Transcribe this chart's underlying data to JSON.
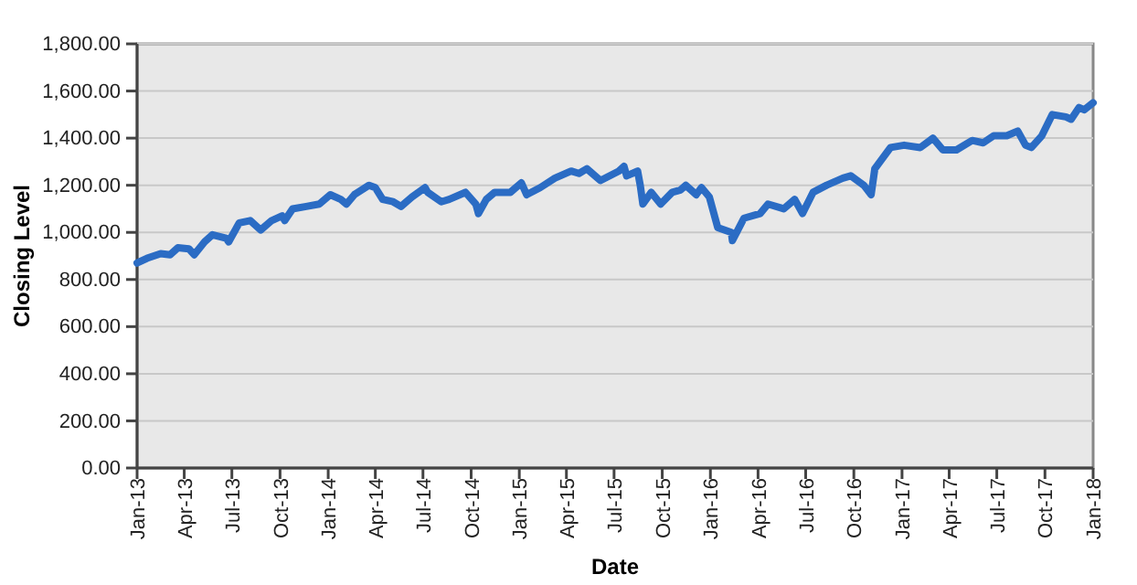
{
  "chart_data": {
    "type": "line",
    "xlabel": "Date",
    "ylabel": "Closing Level",
    "grid": "y",
    "xlim": [
      "2013-01",
      "2018-01"
    ],
    "xticks": [
      {
        "value": "2013-01",
        "label": "Jan-13"
      },
      {
        "value": "2013-04",
        "label": "Apr-13"
      },
      {
        "value": "2013-07",
        "label": "Jul-13"
      },
      {
        "value": "2013-10",
        "label": "Oct-13"
      },
      {
        "value": "2014-01",
        "label": "Jan-14"
      },
      {
        "value": "2014-04",
        "label": "Apr-14"
      },
      {
        "value": "2014-07",
        "label": "Jul-14"
      },
      {
        "value": "2014-10",
        "label": "Oct-14"
      },
      {
        "value": "2015-01",
        "label": "Jan-15"
      },
      {
        "value": "2015-04",
        "label": "Apr-15"
      },
      {
        "value": "2015-07",
        "label": "Jul-15"
      },
      {
        "value": "2015-10",
        "label": "Oct-15"
      },
      {
        "value": "2016-01",
        "label": "Jan-16"
      },
      {
        "value": "2016-04",
        "label": "Apr-16"
      },
      {
        "value": "2016-07",
        "label": "Jul-16"
      },
      {
        "value": "2016-10",
        "label": "Oct-16"
      },
      {
        "value": "2017-01",
        "label": "Jan-17"
      },
      {
        "value": "2017-04",
        "label": "Apr-17"
      },
      {
        "value": "2017-07",
        "label": "Jul-17"
      },
      {
        "value": "2017-10",
        "label": "Oct-17"
      },
      {
        "value": "2018-01",
        "label": "Jan-18"
      }
    ],
    "ylim": [
      0,
      1800
    ],
    "yticks": [
      {
        "value": 0,
        "label": "0.00"
      },
      {
        "value": 200,
        "label": "200.00"
      },
      {
        "value": 400,
        "label": "400.00"
      },
      {
        "value": 600,
        "label": "600.00"
      },
      {
        "value": 800,
        "label": "800.00"
      },
      {
        "value": 1000,
        "label": "1,000.00"
      },
      {
        "value": 1200,
        "label": "1,200.00"
      },
      {
        "value": 1400,
        "label": "1,400.00"
      },
      {
        "value": 1600,
        "label": "1,600.00"
      },
      {
        "value": 1800,
        "label": "1,800.00"
      }
    ],
    "marker": "none",
    "line_style": "solid",
    "series": [
      {
        "color": "#2b6cc4",
        "x": [
          "2013-01-01",
          "2013-01-20",
          "2013-02-15",
          "2013-03-05",
          "2013-03-20",
          "2013-04-10",
          "2013-04-20",
          "2013-05-10",
          "2013-05-25",
          "2013-06-20",
          "2013-06-25",
          "2013-07-15",
          "2013-08-05",
          "2013-08-25",
          "2013-09-15",
          "2013-10-05",
          "2013-10-10",
          "2013-10-25",
          "2013-11-20",
          "2013-12-15",
          "2014-01-05",
          "2014-01-25",
          "2014-02-05",
          "2014-02-20",
          "2014-03-20",
          "2014-04-01",
          "2014-04-15",
          "2014-05-05",
          "2014-05-20",
          "2014-06-10",
          "2014-07-05",
          "2014-07-10",
          "2014-08-05",
          "2014-08-20",
          "2014-09-20",
          "2014-10-10",
          "2014-10-15",
          "2014-10-30",
          "2014-11-15",
          "2014-12-15",
          "2015-01-05",
          "2015-01-15",
          "2015-02-10",
          "2015-03-10",
          "2015-04-10",
          "2015-04-25",
          "2015-05-10",
          "2015-06-05",
          "2015-07-10",
          "2015-07-20",
          "2015-07-25",
          "2015-08-15",
          "2015-08-20",
          "2015-08-25",
          "2015-09-10",
          "2015-09-28",
          "2015-10-20",
          "2015-11-05",
          "2015-11-15",
          "2015-12-05",
          "2015-12-15",
          "2015-12-30",
          "2016-01-15",
          "2016-02-10",
          "2016-02-12",
          "2016-03-05",
          "2016-04-05",
          "2016-04-20",
          "2016-05-20",
          "2016-06-10",
          "2016-06-25",
          "2016-07-15",
          "2016-08-10",
          "2016-09-10",
          "2016-09-25",
          "2016-10-20",
          "2016-11-03",
          "2016-11-10",
          "2016-12-10",
          "2017-01-05",
          "2017-02-05",
          "2017-03-01",
          "2017-03-20",
          "2017-04-15",
          "2017-05-15",
          "2017-06-05",
          "2017-06-25",
          "2017-07-20",
          "2017-08-10",
          "2017-08-25",
          "2017-09-05",
          "2017-09-25",
          "2017-10-15",
          "2017-11-10",
          "2017-11-20",
          "2017-12-05",
          "2017-12-15",
          "2018-01-01"
        ],
        "values": [
          870,
          890,
          910,
          905,
          935,
          930,
          905,
          960,
          990,
          975,
          960,
          1040,
          1050,
          1010,
          1050,
          1070,
          1050,
          1100,
          1110,
          1120,
          1160,
          1140,
          1120,
          1160,
          1200,
          1190,
          1140,
          1130,
          1110,
          1150,
          1190,
          1170,
          1130,
          1140,
          1170,
          1120,
          1080,
          1140,
          1170,
          1170,
          1210,
          1160,
          1190,
          1230,
          1260,
          1250,
          1270,
          1220,
          1260,
          1280,
          1240,
          1260,
          1200,
          1120,
          1170,
          1120,
          1170,
          1180,
          1200,
          1160,
          1190,
          1150,
          1020,
          1000,
          965,
          1060,
          1080,
          1120,
          1100,
          1140,
          1080,
          1170,
          1200,
          1230,
          1240,
          1200,
          1160,
          1270,
          1360,
          1370,
          1360,
          1400,
          1350,
          1350,
          1390,
          1380,
          1410,
          1410,
          1430,
          1370,
          1360,
          1410,
          1500,
          1490,
          1480,
          1530,
          1520,
          1550
        ]
      }
    ]
  }
}
